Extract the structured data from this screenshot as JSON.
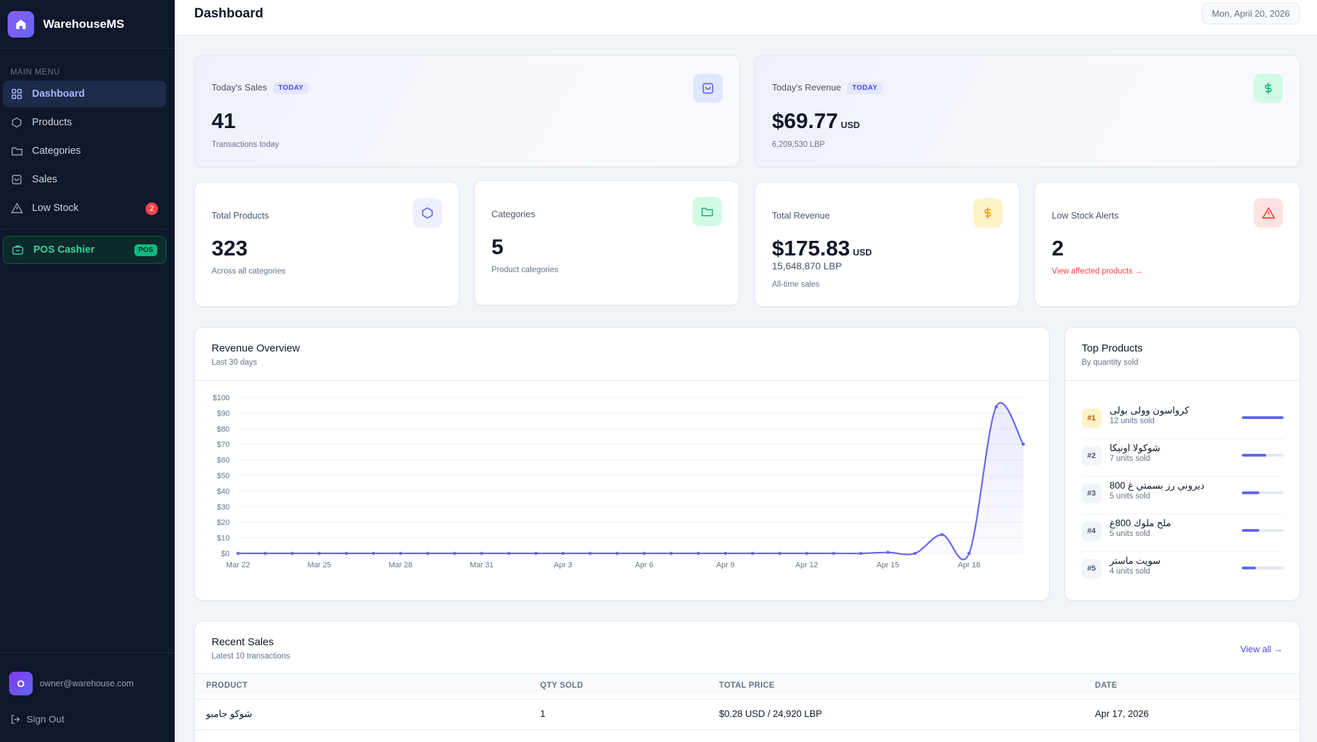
{
  "app": {
    "name": "WarehouseMS"
  },
  "sidebar": {
    "menu_label": "MAIN MENU",
    "items": [
      {
        "label": "Dashboard",
        "icon": "grid-icon",
        "active": true
      },
      {
        "label": "Products",
        "icon": "box-icon"
      },
      {
        "label": "Categories",
        "icon": "folder-icon"
      },
      {
        "label": "Sales",
        "icon": "shopping-bag-icon"
      },
      {
        "label": "Low Stock",
        "icon": "warning-triangle-icon",
        "badge": "2"
      }
    ],
    "pos": {
      "label": "POS Cashier",
      "tag": "POS",
      "icon": "cash-register-icon"
    },
    "user": {
      "initial": "O",
      "email": "owner@warehouse.com"
    },
    "signout": "Sign Out"
  },
  "header": {
    "title": "Dashboard",
    "date": "Mon, April 20, 2026"
  },
  "today": {
    "sales": {
      "label": "Today's Sales",
      "tag": "TODAY",
      "value": "41",
      "sub": "Transactions today"
    },
    "revenue": {
      "label": "Today's Revenue",
      "tag": "TODAY",
      "value": "$69.77",
      "unit": "USD",
      "sub": "6,209,530 LBP"
    }
  },
  "stats": {
    "products": {
      "label": "Total Products",
      "value": "323",
      "sub": "Across all categories"
    },
    "categories": {
      "label": "Categories",
      "value": "5",
      "sub": "Product categories"
    },
    "total_revenue": {
      "label": "Total Revenue",
      "value": "$175.83",
      "unit": "USD",
      "lbp": "15,648,870 LBP",
      "sub": "All-time sales"
    },
    "low_stock": {
      "label": "Low Stock Alerts",
      "value": "2",
      "link": "View affected products →"
    }
  },
  "revenue_overview": {
    "title": "Revenue Overview",
    "subtitle": "Last 30 days"
  },
  "chart_data": {
    "type": "area",
    "title": "Revenue Overview",
    "subtitle": "Last 30 days",
    "x": [
      "Mar 22",
      "Mar 23",
      "Mar 24",
      "Mar 25",
      "Mar 26",
      "Mar 27",
      "Mar 28",
      "Mar 29",
      "Mar 30",
      "Mar 31",
      "Apr 1",
      "Apr 2",
      "Apr 3",
      "Apr 4",
      "Apr 5",
      "Apr 6",
      "Apr 7",
      "Apr 8",
      "Apr 9",
      "Apr 10",
      "Apr 11",
      "Apr 12",
      "Apr 13",
      "Apr 14",
      "Apr 15",
      "Apr 16",
      "Apr 17",
      "Apr 18",
      "Apr 19",
      "Apr 20"
    ],
    "values": [
      0,
      0,
      0,
      0,
      0,
      0,
      0,
      0,
      0,
      0,
      0,
      0,
      0,
      0,
      0,
      0,
      0,
      0,
      0,
      0,
      0,
      0,
      0,
      0,
      0.6,
      0,
      12,
      0,
      94,
      70
    ],
    "xticks": [
      "Mar 22",
      "Mar 25",
      "Mar 28",
      "Mar 31",
      "Apr 3",
      "Apr 6",
      "Apr 9",
      "Apr 12",
      "Apr 15",
      "Apr 18"
    ],
    "yticks": [
      "$0",
      "$10",
      "$20",
      "$30",
      "$40",
      "$50",
      "$60",
      "$70",
      "$80",
      "$90",
      "$100"
    ],
    "ylim": [
      0,
      100
    ],
    "grid": true,
    "color": "#6366f1"
  },
  "top_products": {
    "title": "Top Products",
    "subtitle": "By quantity sold",
    "items": [
      {
        "rank": "#1",
        "name": "كرواسون وولى بولى",
        "units": "12 units sold",
        "qty": 12
      },
      {
        "rank": "#2",
        "name": "شوكولا اونيكا",
        "units": "7 units sold",
        "qty": 7
      },
      {
        "rank": "#3",
        "name": "ديروني رز بسمتي غ 800",
        "units": "5 units sold",
        "qty": 5
      },
      {
        "rank": "#4",
        "name": "ملح ملوك 800غ",
        "units": "5 units sold",
        "qty": 5
      },
      {
        "rank": "#5",
        "name": "سويت ماستر",
        "units": "4 units sold",
        "qty": 4
      }
    ]
  },
  "recent_sales": {
    "title": "Recent Sales",
    "subtitle": "Latest 10 transactions",
    "view_all": "View all →",
    "columns": [
      "PRODUCT",
      "QTY SOLD",
      "TOTAL PRICE",
      "DATE"
    ],
    "rows": [
      {
        "product": "شوكو جامبو",
        "qty": "1",
        "total": "$0.28 USD / 24,920 LBP",
        "date": "Apr 17, 2026"
      }
    ]
  },
  "colors": {
    "accent": "#6366f1",
    "sidebar": "#0f172a",
    "success": "#10b981",
    "danger": "#ef4444",
    "warning": "#f59e0b"
  }
}
